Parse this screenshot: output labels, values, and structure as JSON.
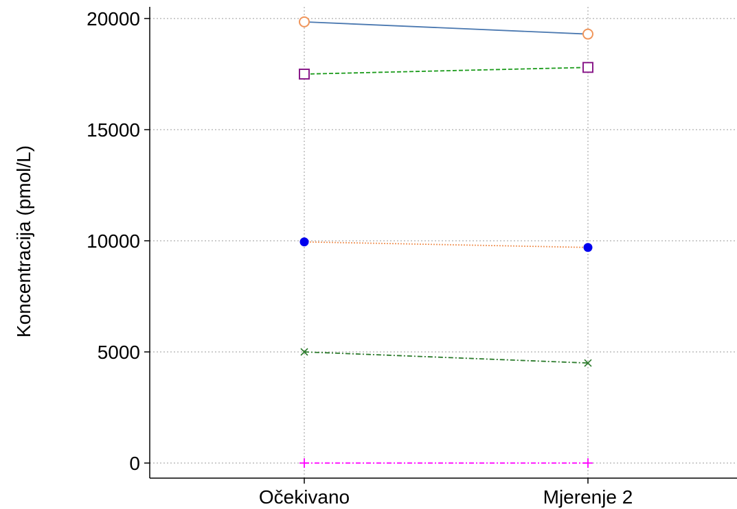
{
  "chart_data": {
    "type": "line",
    "title": "",
    "xlabel": "",
    "ylabel": "Koncentracija (pmol/L)",
    "categories": [
      "Očekivano",
      "Mjerenje 2"
    ],
    "ylim": [
      0,
      20000
    ],
    "yticks": [
      0,
      5000,
      10000,
      15000,
      20000
    ],
    "grid": true,
    "legend": "none",
    "series": [
      {
        "values": [
          19850,
          19300
        ],
        "line_color": "#4a78b0",
        "dash": "solid",
        "marker": "circle-open",
        "marker_color": "#f0955a"
      },
      {
        "values": [
          17500,
          17800
        ],
        "line_color": "#1a9a1a",
        "dash": "dashed",
        "marker": "square-open",
        "marker_color": "#8a1a8a"
      },
      {
        "values": [
          9950,
          9700
        ],
        "line_color": "#f0955a",
        "dash": "dotted",
        "marker": "circle-filled",
        "marker_color": "#0000ee"
      },
      {
        "values": [
          5000,
          4500
        ],
        "line_color": "#2a7a2a",
        "dash": "dashdot",
        "marker": "x",
        "marker_color": "#2a7a2a"
      },
      {
        "values": [
          0,
          0
        ],
        "line_color": "#ff00ff",
        "dash": "dashdot",
        "marker": "plus",
        "marker_color": "#ff00ff"
      }
    ]
  }
}
